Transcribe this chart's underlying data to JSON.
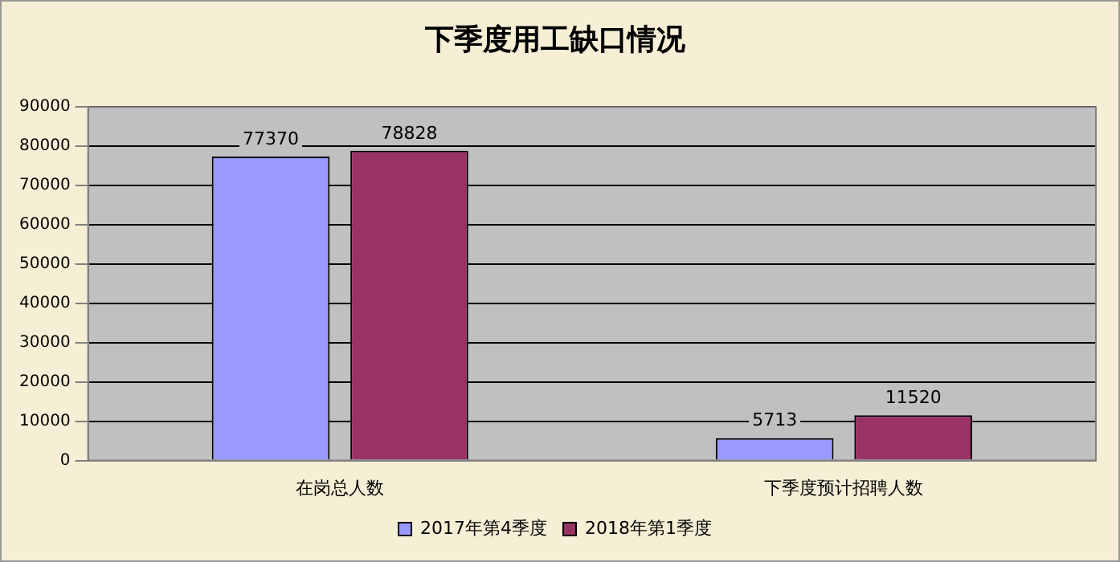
{
  "chart_data": {
    "type": "bar",
    "title": "下季度用工缺口情况",
    "categories": [
      "在岗总人数",
      "下季度预计招聘人数"
    ],
    "series": [
      {
        "name": "2017年第4季度",
        "color": "#9999ff",
        "values": [
          77370,
          5713
        ]
      },
      {
        "name": "2018年第1季度",
        "color": "#993366",
        "values": [
          78828,
          11520
        ]
      }
    ],
    "ylim": [
      0,
      90000
    ],
    "yticks": [
      0,
      10000,
      20000,
      30000,
      40000,
      50000,
      60000,
      70000,
      80000,
      90000
    ],
    "grid": "y",
    "legend": "bottom",
    "data_labels": true
  }
}
